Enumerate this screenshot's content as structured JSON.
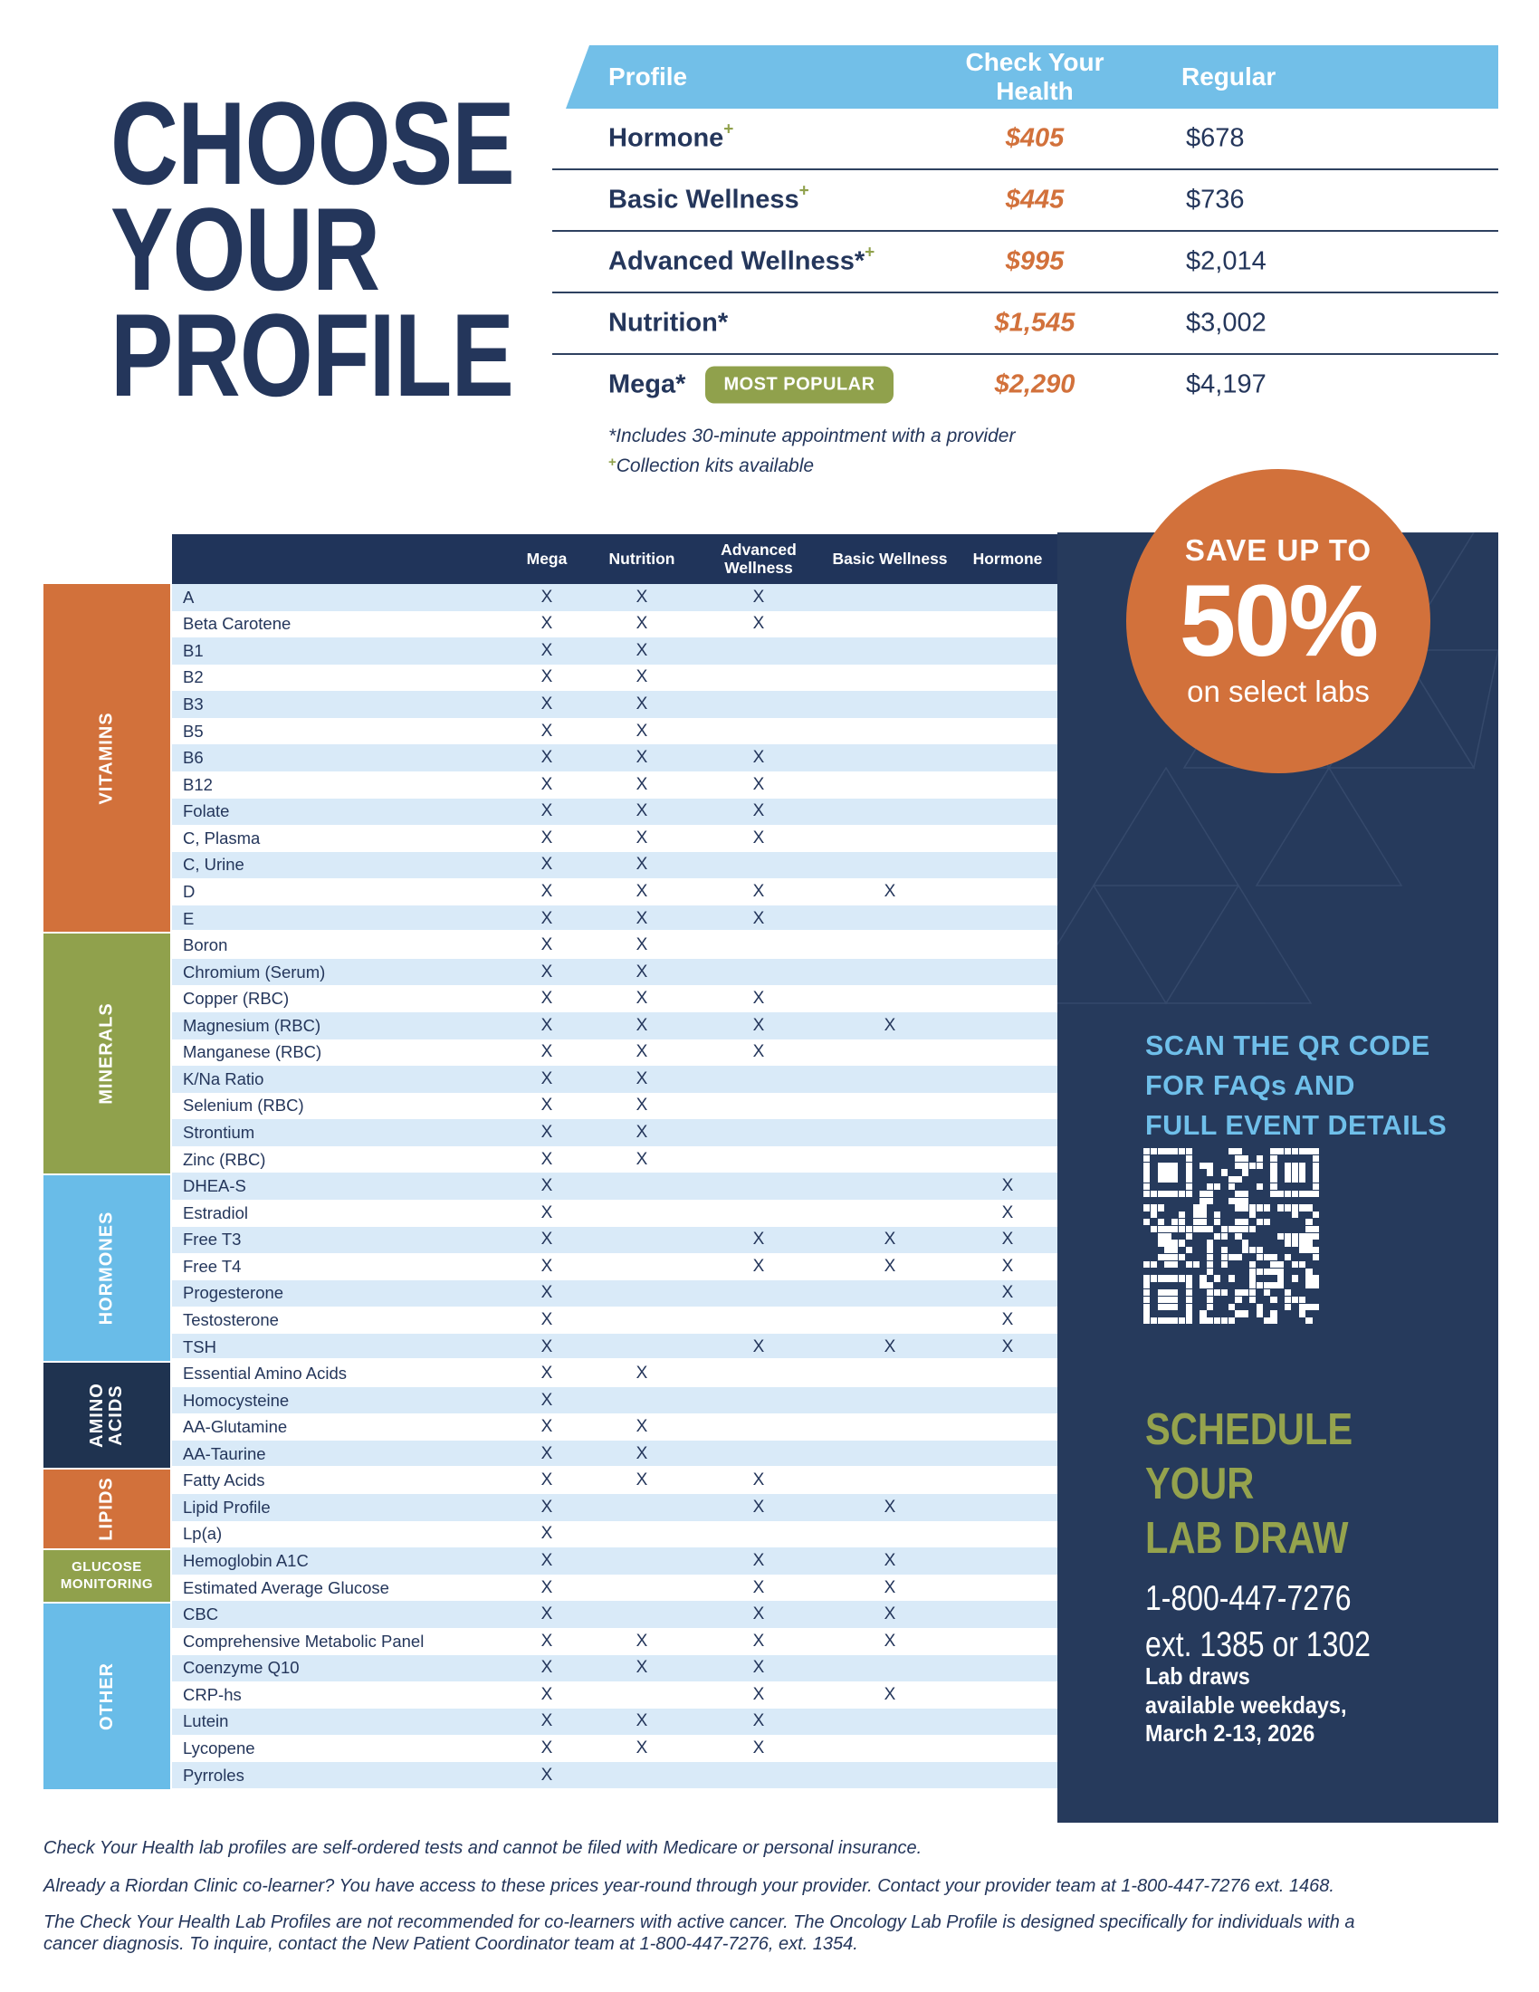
{
  "title": {
    "lines": [
      "CHOOSE",
      "YOUR",
      "PROFILE"
    ]
  },
  "pricing": {
    "header": {
      "profile": "Profile",
      "check_your_health": "Check Your Health",
      "regular": "Regular"
    },
    "rows": [
      {
        "name": "Hormone",
        "star": "",
        "plus": "+",
        "badge": "",
        "cyh": "$405",
        "regular": "$678"
      },
      {
        "name": "Basic Wellness",
        "star": "",
        "plus": "+",
        "badge": "",
        "cyh": "$445",
        "regular": "$736"
      },
      {
        "name": "Advanced Wellness",
        "star": "*",
        "plus": "+",
        "badge": "",
        "cyh": "$995",
        "regular": "$2,014"
      },
      {
        "name": "Nutrition",
        "star": "*",
        "plus": "",
        "badge": "",
        "cyh": "$1,545",
        "regular": "$3,002"
      },
      {
        "name": "Mega",
        "star": "*",
        "plus": "",
        "badge": "MOST POPULAR",
        "cyh": "$2,290",
        "regular": "$4,197"
      }
    ],
    "footnotes": [
      {
        "marker": "*",
        "text": "Includes 30-minute appointment with a provider"
      },
      {
        "marker": "+",
        "text": "Collection kits available"
      }
    ]
  },
  "matrix": {
    "columns": [
      "Mega",
      "Nutrition",
      "Advanced Wellness",
      "Basic Wellness",
      "Hormone"
    ],
    "mark": "X",
    "categories": [
      {
        "label": "VITAMINS",
        "color": "#D2713B",
        "rows": [
          {
            "label": "A",
            "marks": [
              1,
              1,
              1,
              0,
              0
            ]
          },
          {
            "label": "Beta Carotene",
            "marks": [
              1,
              1,
              1,
              0,
              0
            ]
          },
          {
            "label": "B1",
            "marks": [
              1,
              1,
              0,
              0,
              0
            ]
          },
          {
            "label": "B2",
            "marks": [
              1,
              1,
              0,
              0,
              0
            ]
          },
          {
            "label": "B3",
            "marks": [
              1,
              1,
              0,
              0,
              0
            ]
          },
          {
            "label": "B5",
            "marks": [
              1,
              1,
              0,
              0,
              0
            ]
          },
          {
            "label": "B6",
            "marks": [
              1,
              1,
              1,
              0,
              0
            ]
          },
          {
            "label": "B12",
            "marks": [
              1,
              1,
              1,
              0,
              0
            ]
          },
          {
            "label": "Folate",
            "marks": [
              1,
              1,
              1,
              0,
              0
            ]
          },
          {
            "label": "C, Plasma",
            "marks": [
              1,
              1,
              1,
              0,
              0
            ]
          },
          {
            "label": "C, Urine",
            "marks": [
              1,
              1,
              0,
              0,
              0
            ]
          },
          {
            "label": "D",
            "marks": [
              1,
              1,
              1,
              1,
              0
            ]
          },
          {
            "label": "E",
            "marks": [
              1,
              1,
              1,
              0,
              0
            ]
          }
        ]
      },
      {
        "label": "MINERALS",
        "color": "#90A14C",
        "rows": [
          {
            "label": "Boron",
            "marks": [
              1,
              1,
              0,
              0,
              0
            ]
          },
          {
            "label": "Chromium (Serum)",
            "marks": [
              1,
              1,
              0,
              0,
              0
            ]
          },
          {
            "label": "Copper (RBC)",
            "marks": [
              1,
              1,
              1,
              0,
              0
            ]
          },
          {
            "label": "Magnesium (RBC)",
            "marks": [
              1,
              1,
              1,
              1,
              0
            ]
          },
          {
            "label": "Manganese (RBC)",
            "marks": [
              1,
              1,
              1,
              0,
              0
            ]
          },
          {
            "label": "K/Na Ratio",
            "marks": [
              1,
              1,
              0,
              0,
              0
            ]
          },
          {
            "label": "Selenium (RBC)",
            "marks": [
              1,
              1,
              0,
              0,
              0
            ]
          },
          {
            "label": "Strontium",
            "marks": [
              1,
              1,
              0,
              0,
              0
            ]
          },
          {
            "label": "Zinc (RBC)",
            "marks": [
              1,
              1,
              0,
              0,
              0
            ]
          }
        ]
      },
      {
        "label": "HORMONES",
        "color": "#69BCE8",
        "rows": [
          {
            "label": "DHEA-S",
            "marks": [
              1,
              0,
              0,
              0,
              1
            ]
          },
          {
            "label": "Estradiol",
            "marks": [
              1,
              0,
              0,
              0,
              1
            ]
          },
          {
            "label": "Free T3",
            "marks": [
              1,
              0,
              1,
              1,
              1
            ]
          },
          {
            "label": "Free T4",
            "marks": [
              1,
              0,
              1,
              1,
              1
            ]
          },
          {
            "label": "Progesterone",
            "marks": [
              1,
              0,
              0,
              0,
              1
            ]
          },
          {
            "label": "Testosterone",
            "marks": [
              1,
              0,
              0,
              0,
              1
            ]
          },
          {
            "label": "TSH",
            "marks": [
              1,
              0,
              1,
              1,
              1
            ]
          }
        ]
      },
      {
        "label": "AMINO ACIDS",
        "color": "#1F3350",
        "rows": [
          {
            "label": "Essential Amino Acids",
            "marks": [
              1,
              1,
              0,
              0,
              0
            ]
          },
          {
            "label": "Homocysteine",
            "marks": [
              1,
              0,
              0,
              0,
              0
            ]
          },
          {
            "label": "AA-Glutamine",
            "marks": [
              1,
              1,
              0,
              0,
              0
            ]
          },
          {
            "label": "AA-Taurine",
            "marks": [
              1,
              1,
              0,
              0,
              0
            ]
          }
        ]
      },
      {
        "label": "LIPIDS",
        "color": "#D2713B",
        "rows": [
          {
            "label": "Fatty Acids",
            "marks": [
              1,
              1,
              1,
              0,
              0
            ]
          },
          {
            "label": "Lipid Profile",
            "marks": [
              1,
              0,
              1,
              1,
              0
            ]
          },
          {
            "label": "Lp(a)",
            "marks": [
              1,
              0,
              0,
              0,
              0
            ]
          }
        ]
      },
      {
        "label": "GLUCOSE MONITORING",
        "color": "#90A14C",
        "rows": [
          {
            "label": "Hemoglobin A1C",
            "marks": [
              1,
              0,
              1,
              1,
              0
            ]
          },
          {
            "label": "Estimated Average Glucose",
            "marks": [
              1,
              0,
              1,
              1,
              0
            ]
          }
        ]
      },
      {
        "label": "OTHER",
        "color": "#69BCE8",
        "rows": [
          {
            "label": "CBC",
            "marks": [
              1,
              0,
              1,
              1,
              0
            ]
          },
          {
            "label": "Comprehensive Metabolic Panel",
            "marks": [
              1,
              1,
              1,
              1,
              0
            ]
          },
          {
            "label": "Coenzyme Q10",
            "marks": [
              1,
              1,
              1,
              0,
              0
            ]
          },
          {
            "label": "CRP-hs",
            "marks": [
              1,
              0,
              1,
              1,
              0
            ]
          },
          {
            "label": "Lutein",
            "marks": [
              1,
              1,
              1,
              0,
              0
            ]
          },
          {
            "label": "Lycopene",
            "marks": [
              1,
              1,
              1,
              0,
              0
            ]
          },
          {
            "label": "Pyrroles",
            "marks": [
              1,
              0,
              0,
              0,
              0
            ]
          }
        ]
      }
    ]
  },
  "badge_circle": {
    "line1": "SAVE UP TO",
    "line2": "50%",
    "line3": "on select labs"
  },
  "qr_section": {
    "lines": [
      "SCAN THE QR CODE",
      "FOR FAQs AND",
      "FULL EVENT DETAILS"
    ]
  },
  "schedule": {
    "lines": [
      "SCHEDULE",
      "YOUR",
      "LAB DRAW"
    ],
    "phone": "1-800-447-7276",
    "ext": "ext. 1385 or 1302",
    "note_lines": [
      "Lab draws",
      "available weekdays,",
      "March 2-13, 2026"
    ]
  },
  "footer": {
    "paragraphs": [
      "Check Your Health lab profiles are self-ordered tests and cannot be filed with Medicare or personal insurance.",
      "Already a Riordan Clinic co-learner? You have access to these prices year-round through your provider. Contact your provider team at 1-800-447-7276 ext. 1468.",
      "The Check Your Health Lab Profiles are not recommended for co-learners with active cancer. The Oncology Lab Profile is designed specifically for individuals with a cancer diagnosis. To inquire, contact the New Patient Coordinator team at 1-800-447-7276, ext. 1354."
    ]
  },
  "colors": {
    "orange": "#D2713B",
    "olive": "#90A14C",
    "sky": "#72BFE8",
    "navy": "#24365B",
    "panel_navy": "#263A5C",
    "stripe": "#D9EAF8",
    "scan_blue": "#6FBFEA",
    "schedule_olive": "#95A34D"
  }
}
